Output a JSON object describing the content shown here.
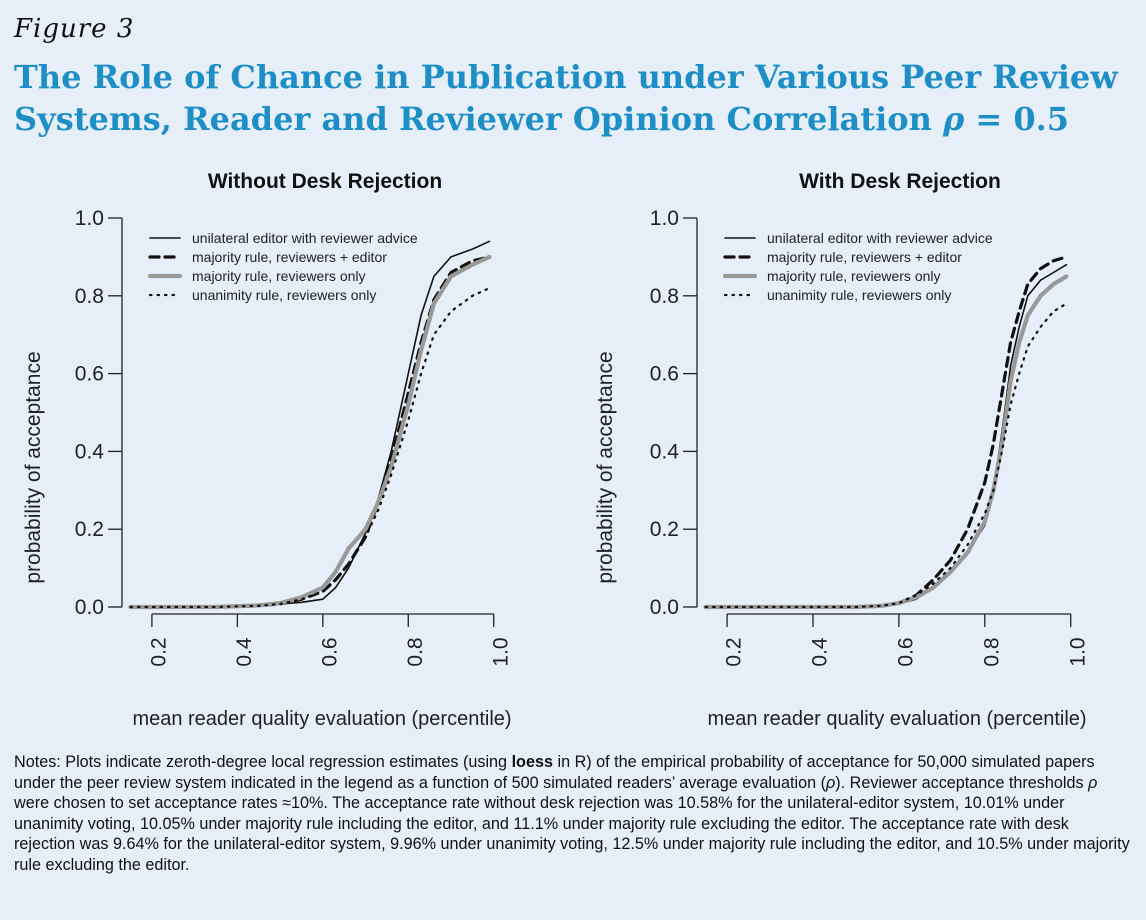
{
  "figure_label": "Figure 3",
  "title_text": "The Role of Chance in Publication under Various Peer Review Systems, Reader and Reviewer Opinion Correlation",
  "title_symbol": "ρ",
  "title_value": " = 0.5",
  "notes": {
    "part1": "Notes: Plots indicate zeroth-degree local regression estimates (using ",
    "bold": "loess",
    "part2": " in R) of the empirical probability of acceptance for 50,000 simulated papers under the peer review system indicated in the legend as a function of 500 simulated readers’ average evaluation (",
    "sym1": "ρ",
    "part3": "). Reviewer acceptance thresholds ",
    "sym2": "ρ",
    "part4": " were chosen to set acceptance rates ≈10%. The acceptance rate without desk rejection was 10.58% for the unilateral-editor system, 10.01% under unanimity voting, 10.05% under majority rule including the editor, and 11.1% under majority rule excluding the editor. The acceptance rate with desk rejection was 9.64% for the unilateral-editor system, 9.96% under unanimity voting, 12.5% under majority rule including the editor, and 10.5% under majority rule excluding the editor."
  },
  "chart_data": [
    {
      "type": "line",
      "title": "Without Desk Rejection",
      "xlabel": "mean reader quality evaluation (percentile)",
      "ylabel": "probability of acceptance",
      "xlim": [
        0.13,
        1.01
      ],
      "ylim": [
        0,
        1
      ],
      "xticks": [
        "0.2",
        "0.4",
        "0.6",
        "0.8",
        "1.0"
      ],
      "yticks": [
        "0.0",
        "0.2",
        "0.4",
        "0.6",
        "0.8",
        "1.0"
      ],
      "legend_position": "top-left",
      "series": [
        {
          "name": "unilateral editor with reviewer advice",
          "style": "solid-thin",
          "color": "#111111",
          "x": [
            0.35,
            0.45,
            0.5,
            0.55,
            0.6,
            0.63,
            0.66,
            0.7,
            0.73,
            0.76,
            0.8,
            0.83,
            0.86,
            0.9,
            0.95,
            0.99
          ],
          "y": [
            0.0,
            0.003,
            0.008,
            0.012,
            0.02,
            0.05,
            0.1,
            0.19,
            0.28,
            0.4,
            0.6,
            0.75,
            0.85,
            0.9,
            0.92,
            0.94
          ]
        },
        {
          "name": "majority rule, reviewers + editor",
          "style": "dashed",
          "color": "#111111",
          "x": [
            0.35,
            0.45,
            0.5,
            0.55,
            0.6,
            0.63,
            0.66,
            0.7,
            0.73,
            0.76,
            0.8,
            0.83,
            0.86,
            0.9,
            0.95,
            0.99
          ],
          "y": [
            0.0,
            0.003,
            0.008,
            0.02,
            0.04,
            0.07,
            0.11,
            0.18,
            0.27,
            0.38,
            0.55,
            0.68,
            0.79,
            0.86,
            0.89,
            0.9
          ]
        },
        {
          "name": "majority rule, reviewers only",
          "style": "gray-thick",
          "color": "#999999",
          "x": [
            0.35,
            0.45,
            0.5,
            0.55,
            0.6,
            0.63,
            0.66,
            0.7,
            0.73,
            0.76,
            0.8,
            0.83,
            0.86,
            0.9,
            0.95,
            0.99
          ],
          "y": [
            0.0,
            0.004,
            0.01,
            0.025,
            0.05,
            0.09,
            0.15,
            0.2,
            0.27,
            0.36,
            0.52,
            0.66,
            0.78,
            0.85,
            0.88,
            0.9
          ]
        },
        {
          "name": "unanimity rule, reviewers only",
          "style": "dotted",
          "color": "#111111",
          "x": [
            0.35,
            0.45,
            0.5,
            0.55,
            0.6,
            0.63,
            0.66,
            0.7,
            0.73,
            0.76,
            0.8,
            0.83,
            0.86,
            0.9,
            0.95,
            0.99
          ],
          "y": [
            0.0,
            0.003,
            0.008,
            0.02,
            0.04,
            0.07,
            0.11,
            0.18,
            0.25,
            0.34,
            0.48,
            0.6,
            0.7,
            0.76,
            0.8,
            0.82
          ]
        }
      ]
    },
    {
      "type": "line",
      "title": "With Desk Rejection",
      "xlabel": "mean reader quality evaluation (percentile)",
      "ylabel": "probability of acceptance",
      "xlim": [
        0.13,
        1.01
      ],
      "ylim": [
        0,
        1
      ],
      "xticks": [
        "0.2",
        "0.4",
        "0.6",
        "0.8",
        "1.0"
      ],
      "yticks": [
        "0.0",
        "0.2",
        "0.4",
        "0.6",
        "0.8",
        "1.0"
      ],
      "legend_position": "top-left",
      "series": [
        {
          "name": "unilateral editor with reviewer advice",
          "style": "solid-thin",
          "color": "#111111",
          "x": [
            0.5,
            0.56,
            0.6,
            0.64,
            0.68,
            0.72,
            0.76,
            0.8,
            0.82,
            0.84,
            0.86,
            0.88,
            0.9,
            0.93,
            0.96,
            0.99
          ],
          "y": [
            0.0,
            0.003,
            0.008,
            0.02,
            0.05,
            0.09,
            0.14,
            0.21,
            0.3,
            0.45,
            0.62,
            0.72,
            0.8,
            0.84,
            0.86,
            0.88
          ]
        },
        {
          "name": "majority rule, reviewers + editor",
          "style": "dashed",
          "color": "#111111",
          "x": [
            0.5,
            0.56,
            0.6,
            0.64,
            0.68,
            0.72,
            0.76,
            0.8,
            0.82,
            0.84,
            0.86,
            0.88,
            0.9,
            0.93,
            0.96,
            0.99
          ],
          "y": [
            0.0,
            0.003,
            0.01,
            0.03,
            0.07,
            0.12,
            0.2,
            0.32,
            0.42,
            0.55,
            0.68,
            0.76,
            0.83,
            0.87,
            0.89,
            0.9
          ]
        },
        {
          "name": "majority rule, reviewers only",
          "style": "gray-thick",
          "color": "#999999",
          "x": [
            0.5,
            0.56,
            0.6,
            0.64,
            0.68,
            0.72,
            0.76,
            0.8,
            0.82,
            0.84,
            0.86,
            0.88,
            0.9,
            0.93,
            0.96,
            0.99
          ],
          "y": [
            0.0,
            0.003,
            0.01,
            0.025,
            0.05,
            0.09,
            0.14,
            0.22,
            0.3,
            0.42,
            0.58,
            0.68,
            0.75,
            0.8,
            0.83,
            0.85
          ]
        },
        {
          "name": "unanimity rule, reviewers only",
          "style": "dotted",
          "color": "#111111",
          "x": [
            0.5,
            0.56,
            0.6,
            0.64,
            0.68,
            0.72,
            0.76,
            0.8,
            0.82,
            0.84,
            0.86,
            0.88,
            0.9,
            0.93,
            0.96,
            0.99
          ],
          "y": [
            0.0,
            0.003,
            0.01,
            0.03,
            0.06,
            0.1,
            0.16,
            0.24,
            0.3,
            0.4,
            0.52,
            0.6,
            0.67,
            0.72,
            0.76,
            0.78
          ]
        }
      ]
    }
  ]
}
